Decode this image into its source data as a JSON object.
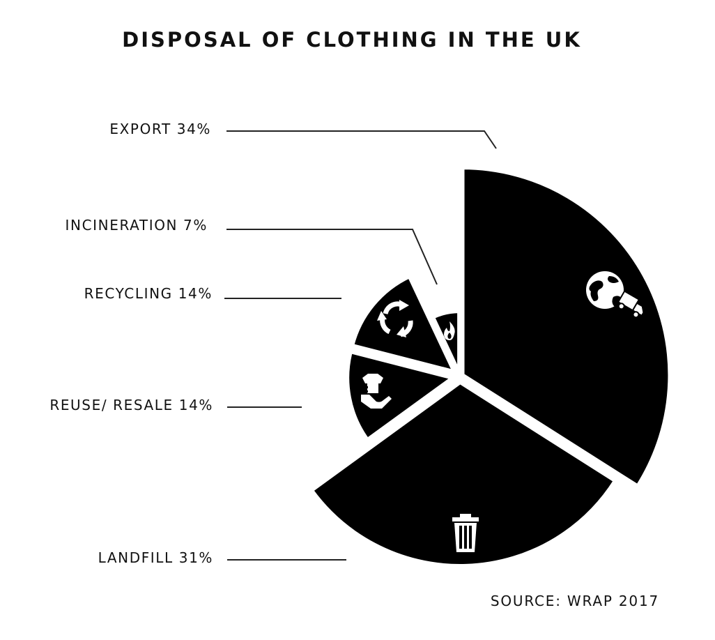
{
  "chart_data": {
    "type": "pie",
    "title": "DISPOSAL OF CLOTHING IN THE UK",
    "source": "SOURCE: WRAP 2017",
    "slices": [
      {
        "label": "EXPORT 34%",
        "value": 34,
        "icon": "globe-truck-icon"
      },
      {
        "label": "LANDFILL 31%",
        "value": 31,
        "icon": "trash-can-icon"
      },
      {
        "label": "REUSE/ RESALE 14%",
        "value": 14,
        "icon": "hand-shirt-icon"
      },
      {
        "label": "RECYCLING 14%",
        "value": 14,
        "icon": "recycle-icon"
      },
      {
        "label": "INCINERATION 7%",
        "value": 7,
        "icon": "flame-icon"
      }
    ],
    "colors": {
      "slice": "#000000",
      "background": "#ffffff",
      "text": "#111111"
    }
  }
}
